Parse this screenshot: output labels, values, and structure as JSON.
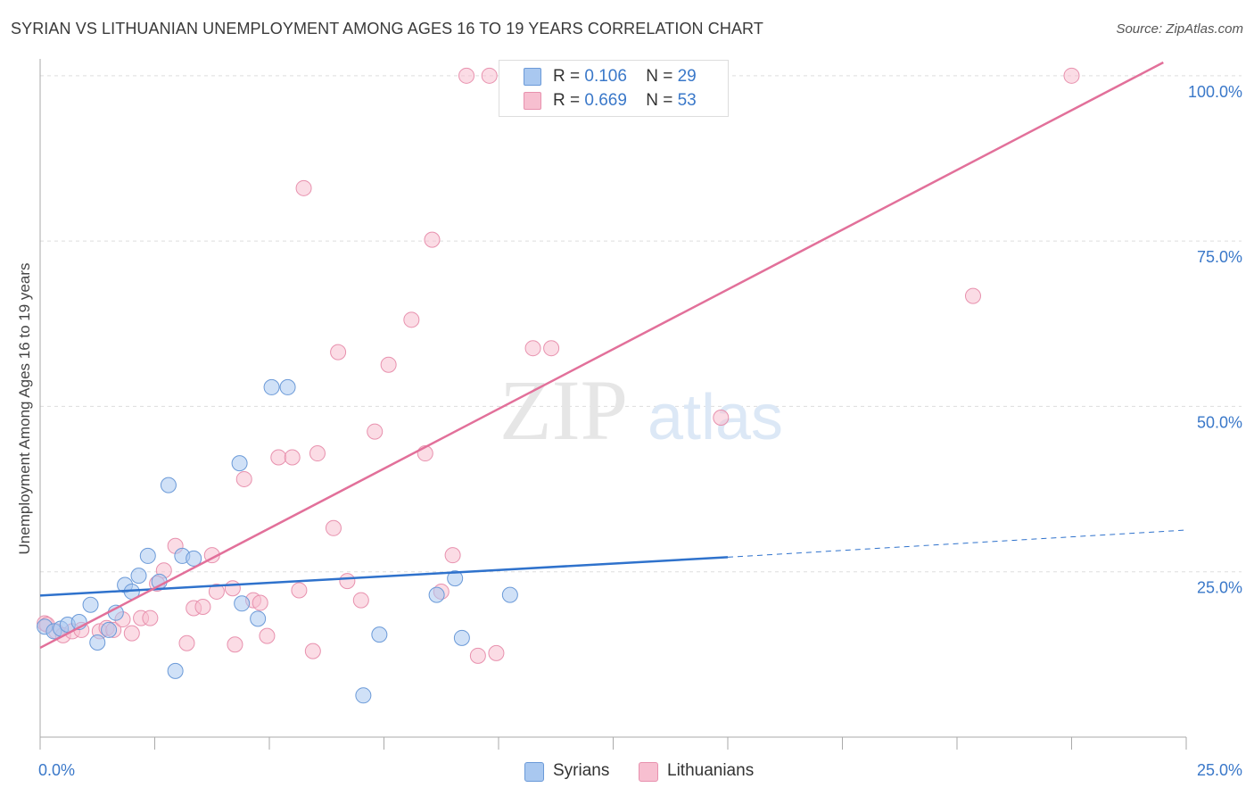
{
  "title": "SYRIAN VS LITHUANIAN UNEMPLOYMENT AMONG AGES 16 TO 19 YEARS CORRELATION CHART",
  "source": "Source: ZipAtlas.com",
  "watermark": {
    "zip": "ZIP",
    "atlas": "atlas"
  },
  "colors": {
    "syrian_fill": "#a9c8f0",
    "syrian_stroke": "#6b9ad8",
    "syrian_line": "#2f72cc",
    "lith_fill": "#f7bfd0",
    "lith_stroke": "#e891ae",
    "lith_line": "#e2709a",
    "axis_text": "#3a78c9",
    "grid": "#dddddd"
  },
  "stats": {
    "syrians": {
      "r_label": "R =",
      "r_value": "0.106",
      "n_label": "N =",
      "n_value": "29"
    },
    "lithuanians": {
      "r_label": "R =",
      "r_value": "0.669",
      "n_label": "N =",
      "n_value": "53"
    }
  },
  "legend": {
    "syrians": "Syrians",
    "lithuanians": "Lithuanians"
  },
  "chart_data": {
    "type": "scatter",
    "title": "SYRIAN VS LITHUANIAN UNEMPLOYMENT AMONG AGES 16 TO 19 YEARS CORRELATION CHART",
    "xlabel": "",
    "ylabel": "Unemployment Among Ages 16 to 19 years",
    "xlim": [
      0,
      25
    ],
    "ylim": [
      0,
      102
    ],
    "x_tick_labels": [
      "0.0%",
      "25.0%"
    ],
    "y_tick_labels": [
      "25.0%",
      "50.0%",
      "75.0%",
      "100.0%"
    ],
    "y_ticks": [
      25,
      50,
      75,
      100
    ],
    "grid": true,
    "legend_position": "bottom-center",
    "series": [
      {
        "name": "Syrians",
        "r": 0.106,
        "n": 29,
        "trend": {
          "x0": 0,
          "y0": 21.4,
          "x1": 15,
          "y1": 27.2,
          "dashed_to_x": 25,
          "dashed_end_y": 31.3
        },
        "points": [
          {
            "x": 0.1,
            "y": 16.7
          },
          {
            "x": 0.3,
            "y": 16.0
          },
          {
            "x": 0.45,
            "y": 16.4
          },
          {
            "x": 0.6,
            "y": 17.0
          },
          {
            "x": 0.85,
            "y": 17.4
          },
          {
            "x": 1.1,
            "y": 20.0
          },
          {
            "x": 1.25,
            "y": 14.3
          },
          {
            "x": 1.5,
            "y": 16.2
          },
          {
            "x": 1.65,
            "y": 18.8
          },
          {
            "x": 1.85,
            "y": 23.0
          },
          {
            "x": 2.0,
            "y": 22.0
          },
          {
            "x": 2.15,
            "y": 24.4
          },
          {
            "x": 2.35,
            "y": 27.4
          },
          {
            "x": 2.6,
            "y": 23.5
          },
          {
            "x": 2.8,
            "y": 38.1
          },
          {
            "x": 2.95,
            "y": 10.0
          },
          {
            "x": 3.1,
            "y": 27.4
          },
          {
            "x": 3.35,
            "y": 27.0
          },
          {
            "x": 4.35,
            "y": 41.4
          },
          {
            "x": 4.4,
            "y": 20.2
          },
          {
            "x": 4.75,
            "y": 17.9
          },
          {
            "x": 5.05,
            "y": 52.9
          },
          {
            "x": 5.4,
            "y": 52.9
          },
          {
            "x": 7.05,
            "y": 6.3
          },
          {
            "x": 7.4,
            "y": 15.5
          },
          {
            "x": 8.65,
            "y": 21.5
          },
          {
            "x": 9.05,
            "y": 24.0
          },
          {
            "x": 9.2,
            "y": 15.0
          },
          {
            "x": 10.25,
            "y": 21.5
          }
        ]
      },
      {
        "name": "Lithuanians",
        "r": 0.669,
        "n": 53,
        "trend": {
          "x0": 0,
          "y0": 13.5,
          "x1": 24.5,
          "y1": 102.0
        },
        "points": [
          {
            "x": 0.1,
            "y": 17.2
          },
          {
            "x": 0.35,
            "y": 16.0
          },
          {
            "x": 0.5,
            "y": 15.4
          },
          {
            "x": 0.7,
            "y": 16.0
          },
          {
            "x": 0.9,
            "y": 16.2
          },
          {
            "x": 1.3,
            "y": 16.0
          },
          {
            "x": 1.45,
            "y": 16.5
          },
          {
            "x": 1.6,
            "y": 16.2
          },
          {
            "x": 1.8,
            "y": 17.8
          },
          {
            "x": 2.0,
            "y": 15.7
          },
          {
            "x": 2.2,
            "y": 18.0
          },
          {
            "x": 2.4,
            "y": 18.0
          },
          {
            "x": 2.55,
            "y": 23.2
          },
          {
            "x": 2.7,
            "y": 25.2
          },
          {
            "x": 2.95,
            "y": 28.9
          },
          {
            "x": 3.2,
            "y": 14.2
          },
          {
            "x": 3.35,
            "y": 19.5
          },
          {
            "x": 3.55,
            "y": 19.7
          },
          {
            "x": 3.75,
            "y": 27.5
          },
          {
            "x": 3.85,
            "y": 22.0
          },
          {
            "x": 4.2,
            "y": 22.5
          },
          {
            "x": 4.25,
            "y": 14.0
          },
          {
            "x": 4.45,
            "y": 39.0
          },
          {
            "x": 4.65,
            "y": 20.7
          },
          {
            "x": 4.8,
            "y": 20.3
          },
          {
            "x": 4.95,
            "y": 15.3
          },
          {
            "x": 5.2,
            "y": 42.3
          },
          {
            "x": 5.5,
            "y": 42.3
          },
          {
            "x": 5.65,
            "y": 22.2
          },
          {
            "x": 5.75,
            "y": 83.0
          },
          {
            "x": 5.95,
            "y": 13.0
          },
          {
            "x": 6.05,
            "y": 42.9
          },
          {
            "x": 6.4,
            "y": 31.6
          },
          {
            "x": 6.5,
            "y": 58.2
          },
          {
            "x": 6.7,
            "y": 23.6
          },
          {
            "x": 7.0,
            "y": 20.7
          },
          {
            "x": 7.3,
            "y": 46.2
          },
          {
            "x": 7.6,
            "y": 56.3
          },
          {
            "x": 8.1,
            "y": 63.1
          },
          {
            "x": 8.4,
            "y": 42.9
          },
          {
            "x": 8.55,
            "y": 75.2
          },
          {
            "x": 8.75,
            "y": 22.0
          },
          {
            "x": 9.0,
            "y": 27.5
          },
          {
            "x": 9.3,
            "y": 100.0
          },
          {
            "x": 9.55,
            "y": 12.3
          },
          {
            "x": 9.8,
            "y": 100.0
          },
          {
            "x": 9.95,
            "y": 12.7
          },
          {
            "x": 10.75,
            "y": 58.8
          },
          {
            "x": 11.15,
            "y": 58.8
          },
          {
            "x": 14.85,
            "y": 48.3
          },
          {
            "x": 20.35,
            "y": 66.7
          },
          {
            "x": 22.5,
            "y": 100.0
          },
          {
            "x": 0.15,
            "y": 17.0
          }
        ]
      }
    ]
  }
}
